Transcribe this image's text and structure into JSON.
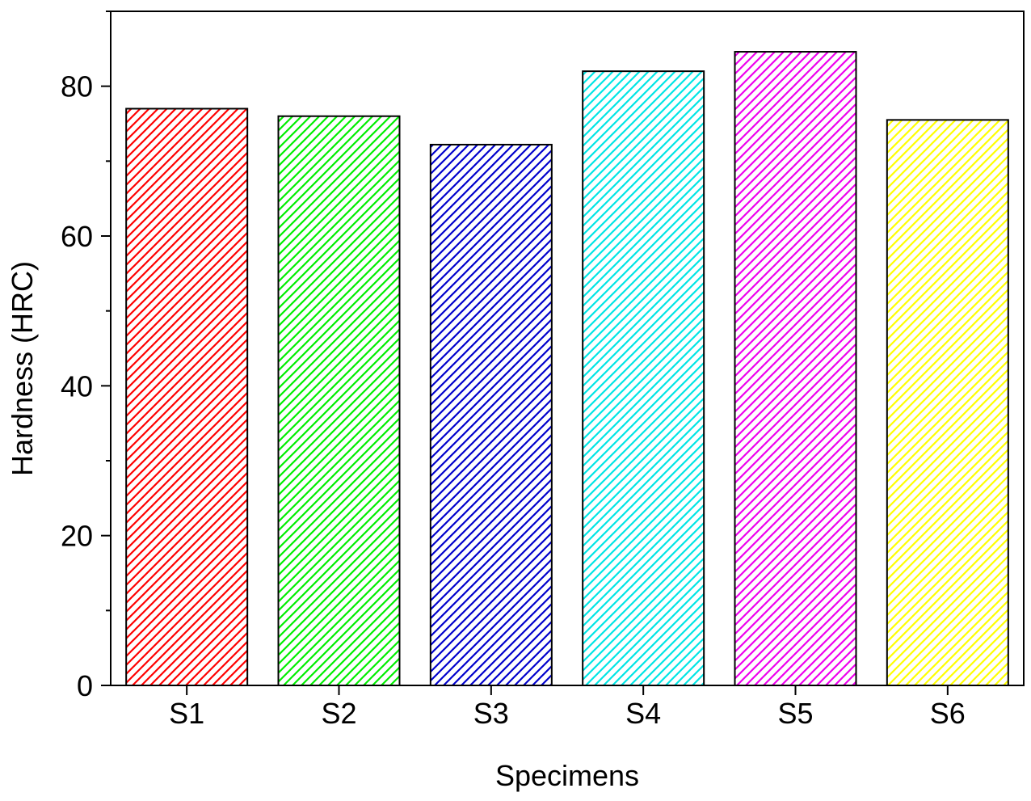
{
  "chart_data": {
    "type": "bar",
    "title": "",
    "xlabel": "Specimens",
    "ylabel": "Hardness (HRC)",
    "categories": [
      "S1",
      "S2",
      "S3",
      "S4",
      "S5",
      "S6"
    ],
    "values": [
      77,
      76,
      72.2,
      82,
      84.6,
      75.5
    ],
    "colors": [
      "#ff0000",
      "#00ee00",
      "#0000cc",
      "#00e5e5",
      "#ee00ee",
      "#ffff00"
    ],
    "fill_pattern": "diagonal-hatch",
    "ylim": [
      0,
      90
    ],
    "yticks": [
      0,
      20,
      40,
      60,
      80
    ],
    "yticks_minor": [
      10,
      30,
      50,
      70,
      90
    ],
    "yticks_labels": [
      "0",
      "20",
      "40",
      "60",
      "80"
    ],
    "grid": false,
    "legend": "none"
  }
}
